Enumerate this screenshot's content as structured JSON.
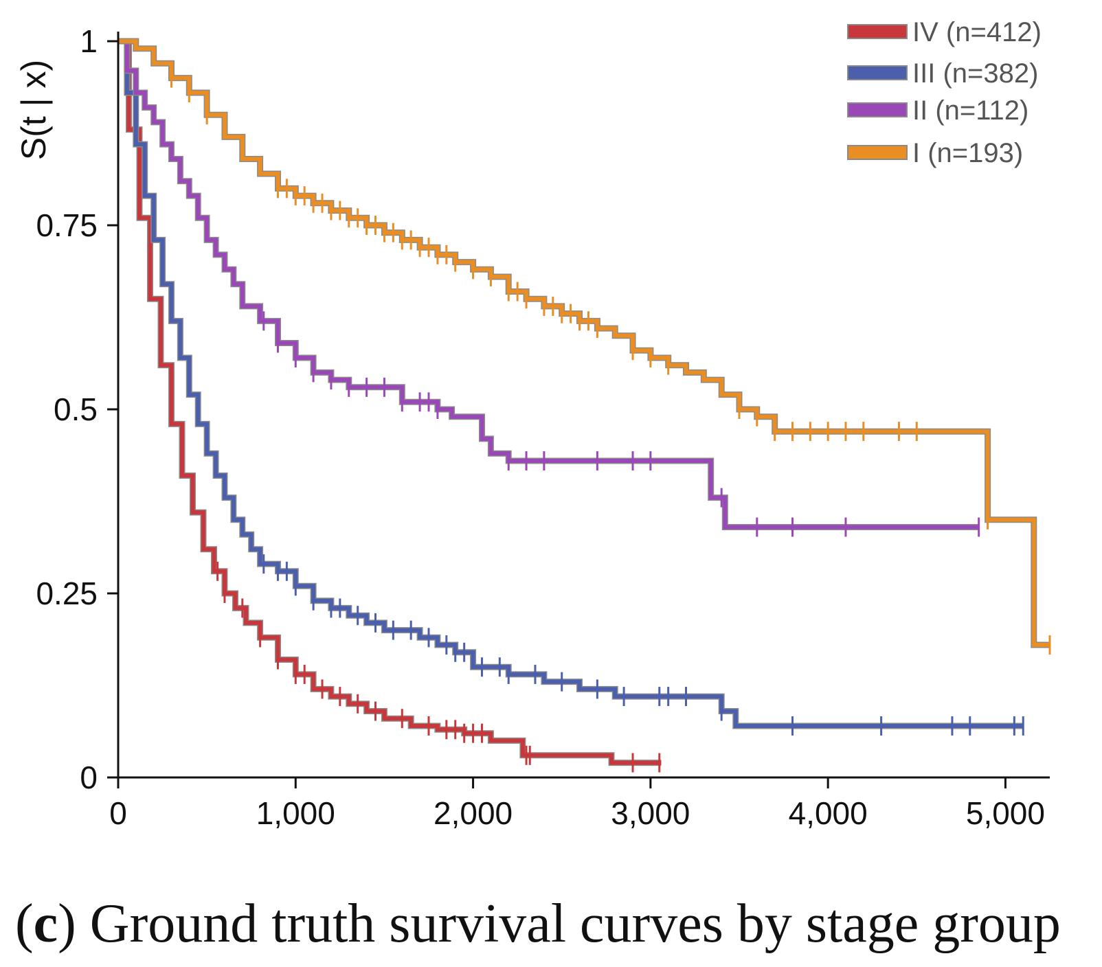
{
  "caption": {
    "tag": "c",
    "text": "Ground truth survival curves by stage group"
  },
  "chart_data": {
    "type": "line",
    "step": true,
    "title": "",
    "xlabel": "",
    "ylabel": "S(t | x)",
    "xlim": [
      0,
      5250
    ],
    "ylim": [
      0,
      1
    ],
    "x_ticks": [
      "0",
      "1,000",
      "2,000",
      "3,000",
      "4,000",
      "5,000"
    ],
    "x_tick_values": [
      0,
      1000,
      2000,
      3000,
      4000,
      5000
    ],
    "y_ticks": [
      "0",
      "0.25",
      "0.5",
      "0.75",
      "1"
    ],
    "y_tick_values": [
      0,
      0.25,
      0.5,
      0.75,
      1
    ],
    "grid": false,
    "legend_position": "top-right",
    "series": [
      {
        "name": "IV (n=412)",
        "color": "#c8373b",
        "x": [
          0,
          60,
          120,
          180,
          240,
          300,
          360,
          420,
          480,
          540,
          600,
          660,
          720,
          800,
          900,
          1000,
          1100,
          1200,
          1300,
          1400,
          1500,
          1650,
          1800,
          1950,
          2100,
          2280,
          2400,
          2600,
          2780,
          3060
        ],
        "y": [
          1.0,
          0.88,
          0.76,
          0.65,
          0.56,
          0.48,
          0.41,
          0.36,
          0.31,
          0.28,
          0.25,
          0.23,
          0.21,
          0.19,
          0.16,
          0.14,
          0.12,
          0.11,
          0.1,
          0.09,
          0.08,
          0.07,
          0.065,
          0.06,
          0.05,
          0.03,
          0.03,
          0.03,
          0.02,
          0.02
        ],
        "censor_x": [
          560,
          600,
          700,
          800,
          900,
          1000,
          1050,
          1150,
          1250,
          1350,
          1450,
          1600,
          1750,
          1850,
          1900,
          1950,
          2000,
          2050,
          2300,
          2320,
          2900,
          3050
        ]
      },
      {
        "name": "III (n=382)",
        "color": "#4b5fad",
        "x": [
          0,
          50,
          100,
          150,
          200,
          250,
          300,
          350,
          400,
          450,
          500,
          550,
          600,
          650,
          700,
          750,
          800,
          900,
          1000,
          1100,
          1200,
          1300,
          1400,
          1500,
          1600,
          1700,
          1800,
          1900,
          2000,
          2200,
          2400,
          2600,
          2800,
          3000,
          3200,
          3400,
          3480,
          5100
        ],
        "y": [
          1.0,
          0.93,
          0.86,
          0.79,
          0.73,
          0.67,
          0.62,
          0.57,
          0.52,
          0.48,
          0.44,
          0.41,
          0.38,
          0.35,
          0.33,
          0.31,
          0.29,
          0.28,
          0.26,
          0.24,
          0.23,
          0.22,
          0.21,
          0.2,
          0.2,
          0.19,
          0.18,
          0.17,
          0.15,
          0.14,
          0.13,
          0.12,
          0.11,
          0.11,
          0.11,
          0.09,
          0.07,
          0.07
        ],
        "censor_x": [
          820,
          900,
          950,
          1000,
          1100,
          1200,
          1250,
          1350,
          1450,
          1550,
          1650,
          1750,
          1850,
          1900,
          1950,
          2050,
          2150,
          2200,
          2350,
          2500,
          2700,
          2850,
          3050,
          3100,
          3200,
          3400,
          3800,
          4300,
          4700,
          4800,
          5050,
          5100
        ]
      },
      {
        "name": "II (n=112)",
        "color": "#9a48b8",
        "x": [
          0,
          50,
          100,
          150,
          200,
          250,
          300,
          350,
          400,
          450,
          500,
          550,
          600,
          650,
          700,
          800,
          900,
          1000,
          1100,
          1200,
          1300,
          1400,
          1600,
          1800,
          1880,
          2050,
          2100,
          2200,
          3340,
          3420,
          4850
        ],
        "y": [
          1.0,
          0.96,
          0.93,
          0.91,
          0.89,
          0.86,
          0.84,
          0.81,
          0.79,
          0.76,
          0.73,
          0.71,
          0.69,
          0.67,
          0.64,
          0.62,
          0.59,
          0.57,
          0.55,
          0.54,
          0.53,
          0.53,
          0.51,
          0.5,
          0.49,
          0.46,
          0.44,
          0.43,
          0.38,
          0.34,
          0.34
        ],
        "censor_x": [
          820,
          900,
          1000,
          1100,
          1200,
          1300,
          1400,
          1500,
          1600,
          1700,
          1750,
          1800,
          2200,
          2300,
          2400,
          2700,
          2900,
          3000,
          3400,
          3600,
          3800,
          4100,
          4850
        ]
      },
      {
        "name": "I (n=193)",
        "color": "#ea8e24",
        "x": [
          0,
          100,
          200,
          300,
          400,
          500,
          600,
          700,
          800,
          900,
          1000,
          1100,
          1200,
          1300,
          1400,
          1500,
          1600,
          1700,
          1800,
          1900,
          2000,
          2100,
          2200,
          2300,
          2400,
          2500,
          2600,
          2700,
          2800,
          2900,
          3000,
          3100,
          3200,
          3300,
          3400,
          3500,
          3600,
          3700,
          4900,
          5160,
          5250
        ],
        "y": [
          1.0,
          0.99,
          0.97,
          0.95,
          0.93,
          0.9,
          0.87,
          0.84,
          0.82,
          0.8,
          0.79,
          0.78,
          0.77,
          0.76,
          0.75,
          0.74,
          0.73,
          0.72,
          0.71,
          0.7,
          0.69,
          0.68,
          0.66,
          0.65,
          0.64,
          0.63,
          0.62,
          0.61,
          0.6,
          0.58,
          0.57,
          0.56,
          0.55,
          0.54,
          0.52,
          0.5,
          0.49,
          0.47,
          0.35,
          0.18,
          0.18
        ],
        "censor_x": [
          300,
          400,
          500,
          900,
          950,
          1000,
          1050,
          1100,
          1150,
          1200,
          1250,
          1300,
          1350,
          1400,
          1450,
          1500,
          1550,
          1600,
          1650,
          1700,
          1750,
          1800,
          1850,
          1900,
          2000,
          2100,
          2200,
          2250,
          2300,
          2400,
          2450,
          2500,
          2550,
          2600,
          2650,
          2700,
          2900,
          3000,
          3100,
          3500,
          3600,
          3700,
          3800,
          3900,
          4000,
          4100,
          4200,
          4400,
          4500,
          4900,
          5250
        ]
      }
    ]
  }
}
